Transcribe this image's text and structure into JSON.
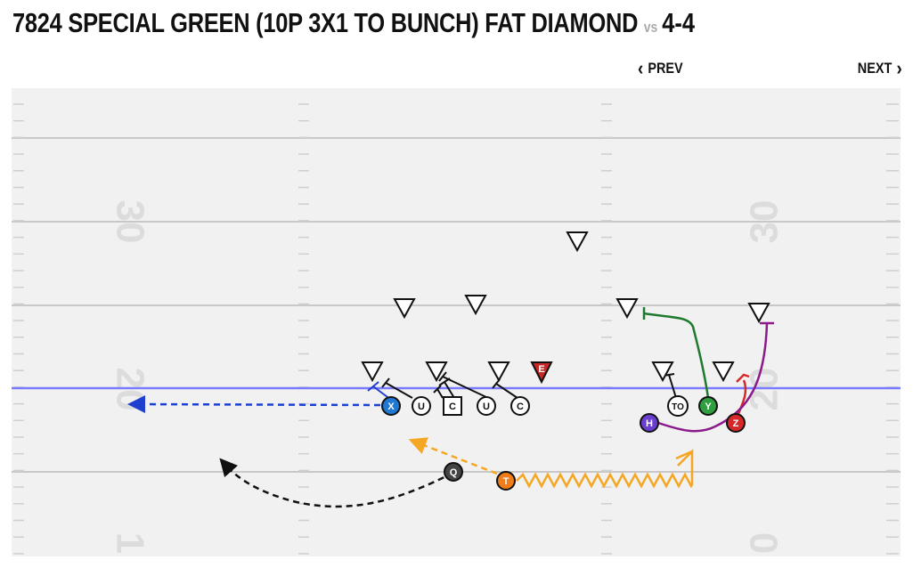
{
  "header": {
    "play_name": "7824 SPECIAL GREEN (10P 3X1 TO BUNCH) FAT DIAMOND",
    "vs_label": "vs",
    "defense": "4-4"
  },
  "nav": {
    "prev_label": "PREV",
    "next_label": "NEXT"
  },
  "colors": {
    "field": "#f1f1f1",
    "line": "#c8c8c8",
    "numbers": "#dcdcdc",
    "scrimmage": "#7b7bff",
    "X": "#1f78d1",
    "Y": "#2e9e3e",
    "Z": "#d62828",
    "H": "#6a3fcf",
    "T": "#f07d1a",
    "Q": "#444444",
    "route_T": "#f5a623",
    "route_H": "#8b1a8b",
    "defender_highlight": "#c62828"
  },
  "yard_numbers": [
    "30",
    "20",
    "1",
    "30",
    "20",
    "0"
  ],
  "offense": [
    {
      "label": "X",
      "role": "receiver-x"
    },
    {
      "label": "U",
      "role": "lineman"
    },
    {
      "label": "C",
      "role": "center"
    },
    {
      "label": "U",
      "role": "lineman"
    },
    {
      "label": "C",
      "role": "lineman"
    },
    {
      "label": "TO",
      "role": "tight-end"
    },
    {
      "label": "Y",
      "role": "receiver-y"
    },
    {
      "label": "H",
      "role": "receiver-h"
    },
    {
      "label": "Z",
      "role": "receiver-z"
    },
    {
      "label": "Q",
      "role": "quarterback"
    },
    {
      "label": "T",
      "role": "running-back"
    }
  ],
  "defense_highlight_label": "E"
}
